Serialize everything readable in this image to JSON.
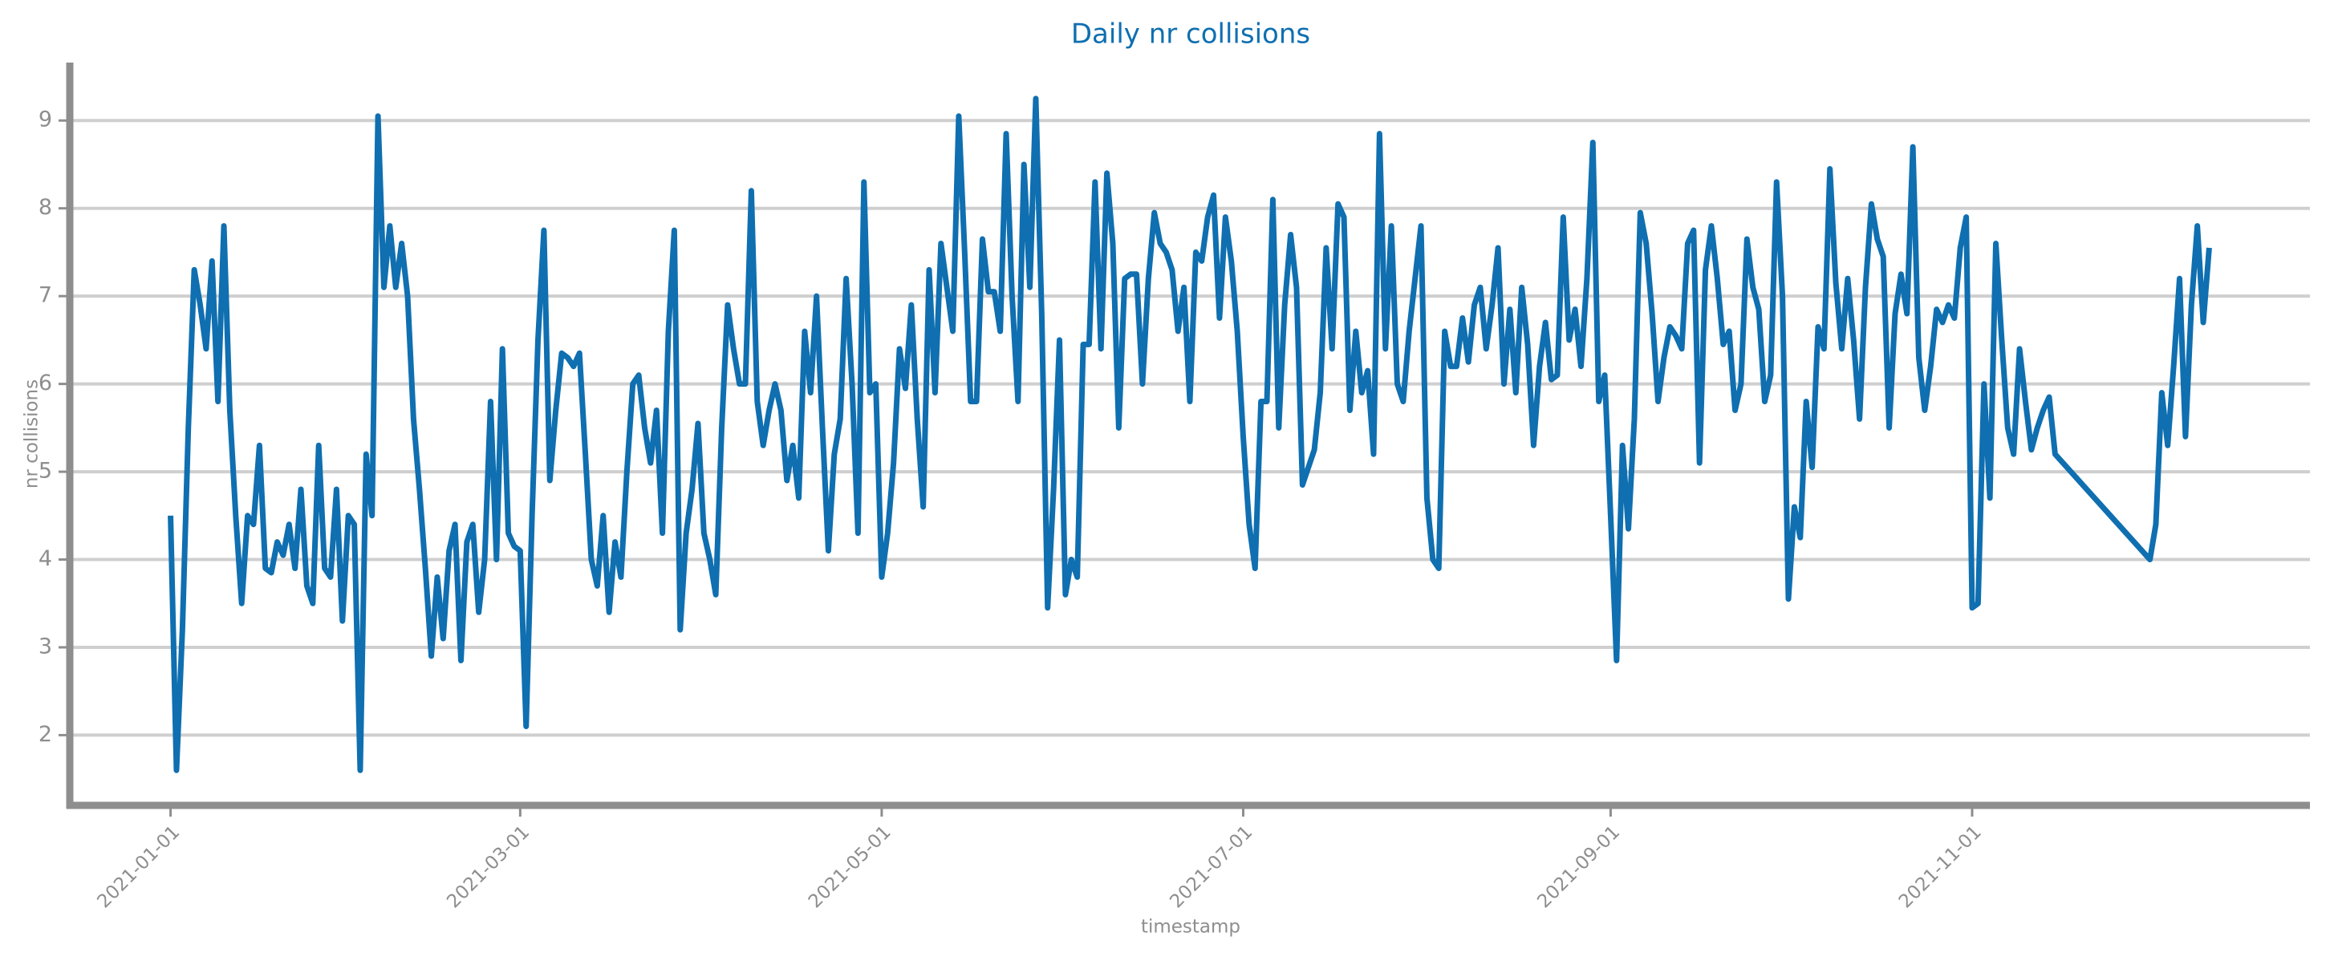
{
  "chart_data": {
    "type": "line",
    "title": "Daily nr collisions",
    "xlabel": "timestamp",
    "ylabel": "nr collisions",
    "color": "#0f6fb0",
    "grid": true,
    "xlim": [
      "2020-12-15",
      "2021-12-28"
    ],
    "ylim": [
      1.2,
      9.66
    ],
    "xticks": [
      "2021-01-01",
      "2021-03-01",
      "2021-05-01",
      "2021-07-01",
      "2021-09-01",
      "2021-11-01"
    ],
    "yticks": [
      2,
      3,
      4,
      5,
      6,
      7,
      8,
      9
    ],
    "x": [
      "2021-01-01",
      "2021-01-02",
      "2021-01-03",
      "2021-01-04",
      "2021-01-05",
      "2021-01-06",
      "2021-01-07",
      "2021-01-08",
      "2021-01-09",
      "2021-01-10",
      "2021-01-11",
      "2021-01-12",
      "2021-01-13",
      "2021-01-14",
      "2021-01-15",
      "2021-01-16",
      "2021-01-17",
      "2021-01-18",
      "2021-01-19",
      "2021-01-20",
      "2021-01-21",
      "2021-01-22",
      "2021-01-23",
      "2021-01-24",
      "2021-01-25",
      "2021-01-26",
      "2021-01-27",
      "2021-01-28",
      "2021-01-29",
      "2021-01-30",
      "2021-01-31",
      "2021-02-01",
      "2021-02-02",
      "2021-02-03",
      "2021-02-04",
      "2021-02-05",
      "2021-02-06",
      "2021-02-07",
      "2021-02-08",
      "2021-02-09",
      "2021-02-10",
      "2021-02-11",
      "2021-02-12",
      "2021-02-13",
      "2021-02-14",
      "2021-02-15",
      "2021-02-16",
      "2021-02-17",
      "2021-02-18",
      "2021-02-19",
      "2021-02-20",
      "2021-02-21",
      "2021-02-22",
      "2021-02-23",
      "2021-02-24",
      "2021-02-25",
      "2021-02-26",
      "2021-02-27",
      "2021-02-28",
      "2021-03-01",
      "2021-03-02",
      "2021-03-03",
      "2021-03-04",
      "2021-03-05",
      "2021-03-06",
      "2021-03-07",
      "2021-03-08",
      "2021-03-09",
      "2021-03-10",
      "2021-03-11",
      "2021-03-12",
      "2021-03-13",
      "2021-03-14",
      "2021-03-15",
      "2021-03-16",
      "2021-03-17",
      "2021-03-18",
      "2021-03-19",
      "2021-03-20",
      "2021-03-21",
      "2021-03-22",
      "2021-03-23",
      "2021-03-24",
      "2021-03-25",
      "2021-03-26",
      "2021-03-27",
      "2021-03-28",
      "2021-03-29",
      "2021-03-30",
      "2021-03-31",
      "2021-04-01",
      "2021-04-02",
      "2021-04-03",
      "2021-04-04",
      "2021-04-05",
      "2021-04-06",
      "2021-04-07",
      "2021-04-08",
      "2021-04-09",
      "2021-04-10",
      "2021-04-11",
      "2021-04-12",
      "2021-04-13",
      "2021-04-14",
      "2021-04-15",
      "2021-04-16",
      "2021-04-17",
      "2021-04-18",
      "2021-04-19",
      "2021-04-20",
      "2021-04-21",
      "2021-04-22",
      "2021-04-23",
      "2021-04-24",
      "2021-04-25",
      "2021-04-26",
      "2021-04-27",
      "2021-04-28",
      "2021-04-29",
      "2021-04-30",
      "2021-05-01",
      "2021-05-02",
      "2021-05-03",
      "2021-05-04",
      "2021-05-05",
      "2021-05-06",
      "2021-05-07",
      "2021-05-08",
      "2021-05-09",
      "2021-05-10",
      "2021-05-11",
      "2021-05-12",
      "2021-05-13",
      "2021-05-14",
      "2021-05-15",
      "2021-05-16",
      "2021-05-17",
      "2021-05-18",
      "2021-05-19",
      "2021-05-20",
      "2021-05-21",
      "2021-05-22",
      "2021-05-23",
      "2021-05-24",
      "2021-05-25",
      "2021-05-26",
      "2021-05-27",
      "2021-05-28",
      "2021-05-29",
      "2021-05-30",
      "2021-05-31",
      "2021-06-01",
      "2021-06-02",
      "2021-06-03",
      "2021-06-04",
      "2021-06-05",
      "2021-06-06",
      "2021-06-07",
      "2021-06-08",
      "2021-06-09",
      "2021-06-10",
      "2021-06-11",
      "2021-06-12",
      "2021-06-13",
      "2021-06-14",
      "2021-06-15",
      "2021-06-16",
      "2021-06-17",
      "2021-06-18",
      "2021-06-19",
      "2021-06-20",
      "2021-06-21",
      "2021-06-22",
      "2021-06-23",
      "2021-06-24",
      "2021-06-25",
      "2021-06-26",
      "2021-06-27",
      "2021-06-28",
      "2021-06-29",
      "2021-06-30",
      "2021-07-01",
      "2021-07-02",
      "2021-07-03",
      "2021-07-04",
      "2021-07-05",
      "2021-07-06",
      "2021-07-07",
      "2021-07-08",
      "2021-07-09",
      "2021-07-10",
      "2021-07-11",
      "2021-07-12",
      "2021-07-13",
      "2021-07-14",
      "2021-07-15",
      "2021-07-16",
      "2021-07-17",
      "2021-07-18",
      "2021-07-19",
      "2021-07-20",
      "2021-07-21",
      "2021-07-22",
      "2021-07-23",
      "2021-07-24",
      "2021-07-25",
      "2021-07-26",
      "2021-07-27",
      "2021-07-28",
      "2021-07-29",
      "2021-07-30",
      "2021-07-31",
      "2021-08-01",
      "2021-08-02",
      "2021-08-03",
      "2021-08-04",
      "2021-08-05",
      "2021-08-06",
      "2021-08-07",
      "2021-08-08",
      "2021-08-09",
      "2021-08-10",
      "2021-08-11",
      "2021-08-12",
      "2021-08-13",
      "2021-08-14",
      "2021-08-15",
      "2021-08-16",
      "2021-08-17",
      "2021-08-18",
      "2021-08-19",
      "2021-08-20",
      "2021-08-21",
      "2021-08-22",
      "2021-08-23",
      "2021-08-24",
      "2021-08-25",
      "2021-08-26",
      "2021-08-27",
      "2021-08-28",
      "2021-08-29",
      "2021-08-30",
      "2021-08-31",
      "2021-09-01",
      "2021-09-02",
      "2021-09-03",
      "2021-09-04",
      "2021-09-05",
      "2021-09-06",
      "2021-09-07",
      "2021-09-08",
      "2021-09-09",
      "2021-09-10",
      "2021-09-11",
      "2021-09-12",
      "2021-09-13",
      "2021-09-14",
      "2021-09-15",
      "2021-09-16",
      "2021-09-17",
      "2021-09-18",
      "2021-09-19",
      "2021-09-20",
      "2021-09-21",
      "2021-09-22",
      "2021-09-23",
      "2021-09-24",
      "2021-09-25",
      "2021-09-26",
      "2021-09-27",
      "2021-09-28",
      "2021-09-29",
      "2021-09-30",
      "2021-10-01",
      "2021-10-02",
      "2021-10-03",
      "2021-10-04",
      "2021-10-05",
      "2021-10-06",
      "2021-10-07",
      "2021-10-08",
      "2021-10-09",
      "2021-10-10",
      "2021-10-11",
      "2021-10-12",
      "2021-10-13",
      "2021-10-14",
      "2021-10-15",
      "2021-10-16",
      "2021-10-17",
      "2021-10-18",
      "2021-10-19",
      "2021-10-20",
      "2021-10-21",
      "2021-10-22",
      "2021-10-23",
      "2021-10-24",
      "2021-10-25",
      "2021-10-26",
      "2021-10-27",
      "2021-10-28",
      "2021-10-29",
      "2021-10-30",
      "2021-10-31",
      "2021-11-01",
      "2021-11-02",
      "2021-11-03",
      "2021-11-04",
      "2021-11-05",
      "2021-11-06",
      "2021-11-07",
      "2021-11-08",
      "2021-11-09",
      "2021-11-10",
      "2021-11-11",
      "2021-11-12",
      "2021-11-13",
      "2021-11-14",
      "2021-11-15",
      "2021-12-01",
      "2021-12-02",
      "2021-12-03",
      "2021-12-04",
      "2021-12-05",
      "2021-12-06",
      "2021-12-07",
      "2021-12-08",
      "2021-12-09",
      "2021-12-10",
      "2021-12-11"
    ],
    "values": [
      4.5,
      1.6,
      3.2,
      5.5,
      7.3,
      6.9,
      6.4,
      7.4,
      5.8,
      7.8,
      5.7,
      4.5,
      3.5,
      4.5,
      4.4,
      5.3,
      3.9,
      3.85,
      4.2,
      4.05,
      4.4,
      3.9,
      4.8,
      3.7,
      3.5,
      5.3,
      3.9,
      3.8,
      4.8,
      3.3,
      4.5,
      4.4,
      1.6,
      5.2,
      4.5,
      9.05,
      7.1,
      7.8,
      7.1,
      7.6,
      7.0,
      5.6,
      4.8,
      3.9,
      2.9,
      3.8,
      3.1,
      4.1,
      4.4,
      2.85,
      4.2,
      4.4,
      3.4,
      4.0,
      5.8,
      4.0,
      6.4,
      4.3,
      4.15,
      4.1,
      2.1,
      4.5,
      6.5,
      7.75,
      4.9,
      5.7,
      6.35,
      6.3,
      6.2,
      6.35,
      5.2,
      4.0,
      3.7,
      4.5,
      3.4,
      4.2,
      3.8,
      5.0,
      6.0,
      6.1,
      5.5,
      5.1,
      5.7,
      4.3,
      6.6,
      7.75,
      3.2,
      4.3,
      4.8,
      5.55,
      4.3,
      4.0,
      3.6,
      5.5,
      6.9,
      6.4,
      6.0,
      6.0,
      8.2,
      5.8,
      5.3,
      5.7,
      6.0,
      5.7,
      4.9,
      5.3,
      4.7,
      6.6,
      5.9,
      7.0,
      5.5,
      4.1,
      5.2,
      5.6,
      7.2,
      6.0,
      4.3,
      8.3,
      5.9,
      6.0,
      3.8,
      4.3,
      5.1,
      6.4,
      5.95,
      6.9,
      5.6,
      4.6,
      7.3,
      5.9,
      7.6,
      7.1,
      6.6,
      9.05,
      7.5,
      5.8,
      5.8,
      7.65,
      7.05,
      7.05,
      6.6,
      8.85,
      7.0,
      5.8,
      8.5,
      7.1,
      9.25,
      6.8,
      3.45,
      4.8,
      6.5,
      3.6,
      4.0,
      3.8,
      6.45,
      6.45,
      8.3,
      6.4,
      8.4,
      7.6,
      5.5,
      7.2,
      7.25,
      7.25,
      6.0,
      7.2,
      7.95,
      7.6,
      7.5,
      7.3,
      6.6,
      7.1,
      5.8,
      7.5,
      7.4,
      7.9,
      8.15,
      6.75,
      7.9,
      7.4,
      6.6,
      5.4,
      4.4,
      3.9,
      5.8,
      5.8,
      8.1,
      5.5,
      6.9,
      7.7,
      7.1,
      4.85,
      5.05,
      5.25,
      5.9,
      7.55,
      6.4,
      8.05,
      7.9,
      5.7,
      6.6,
      5.9,
      6.15,
      5.2,
      8.85,
      6.4,
      7.8,
      6.0,
      5.8,
      6.6,
      7.2,
      7.8,
      4.7,
      4.0,
      3.9,
      6.6,
      6.2,
      6.2,
      6.75,
      6.25,
      6.9,
      7.1,
      6.4,
      6.9,
      7.55,
      6.0,
      6.85,
      5.9,
      7.1,
      6.45,
      5.3,
      6.2,
      6.7,
      6.05,
      6.1,
      7.9,
      6.5,
      6.85,
      6.2,
      7.2,
      8.75,
      5.8,
      6.1,
      4.5,
      2.85,
      5.3,
      4.35,
      5.6,
      7.95,
      7.6,
      6.8,
      5.8,
      6.3,
      6.65,
      6.55,
      6.4,
      7.6,
      7.75,
      5.1,
      7.3,
      7.8,
      7.2,
      6.45,
      6.6,
      5.7,
      6.0,
      7.65,
      7.1,
      6.85,
      5.8,
      6.1,
      8.3,
      7.0,
      3.55,
      4.6,
      4.25,
      5.8,
      5.05,
      6.65,
      6.4,
      8.45,
      7.15,
      6.4,
      7.2,
      6.5,
      5.6,
      7.1,
      8.05,
      7.65,
      7.45,
      5.5,
      6.8,
      7.25,
      6.8,
      8.7,
      6.3,
      5.7,
      6.2,
      6.85,
      6.7,
      6.9,
      6.75,
      7.55,
      7.9,
      3.45,
      3.5,
      6.0,
      4.7,
      7.6,
      6.5,
      5.5,
      5.2,
      6.4,
      5.8,
      5.25,
      5.5,
      5.7,
      5.85,
      5.2,
      4.0,
      4.4,
      5.9,
      5.3,
      6.2,
      7.2,
      5.4,
      6.9,
      7.8,
      6.7,
      7.55
    ]
  }
}
